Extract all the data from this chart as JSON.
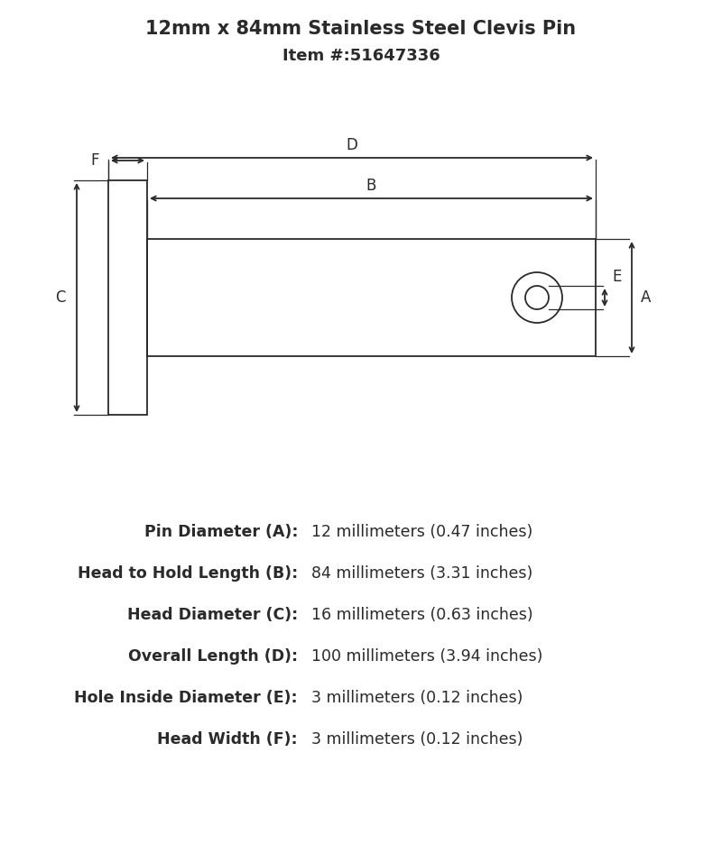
{
  "title_line1": "12mm x 84mm Stainless Steel Clevis Pin",
  "title_line2": "Item #:51647336",
  "title_fontsize": 15,
  "subtitle_fontsize": 13,
  "bg_color": "#ffffff",
  "line_color": "#2a2a2a",
  "specs": [
    {
      "label": "Pin Diameter (A):",
      "value": "12 millimeters (0.47 inches)"
    },
    {
      "label": "Head to Hold Length (B):",
      "value": "84 millimeters (3.31 inches)"
    },
    {
      "label": "Head Diameter (C):",
      "value": "16 millimeters (0.63 inches)"
    },
    {
      "label": "Overall Length (D):",
      "value": "100 millimeters (3.94 inches)"
    },
    {
      "label": "Hole Inside Diameter (E):",
      "value": "3 millimeters (0.12 inches)"
    },
    {
      "label": "Head Width (F):",
      "value": "3 millimeters (0.12 inches)"
    }
  ]
}
